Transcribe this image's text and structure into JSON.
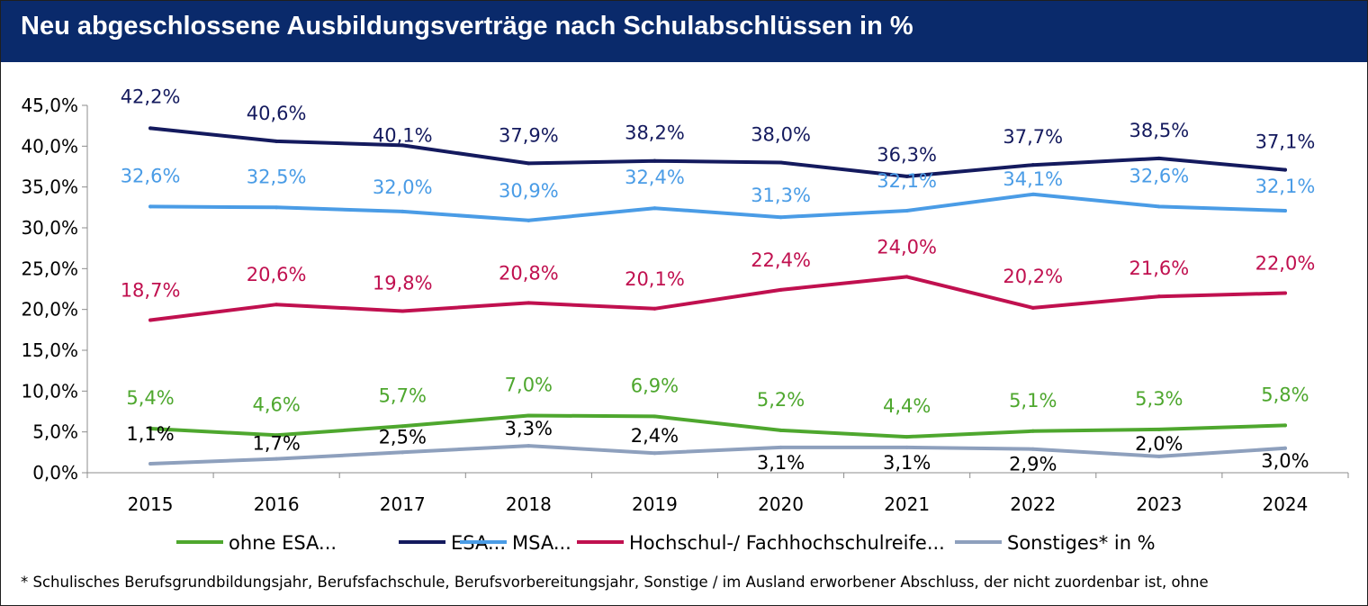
{
  "title": "Neu abgeschlossene Ausbildungsverträge nach Schulabschlüssen in %",
  "footnote": "* Schulisches Berufsgrundbildungsjahr, Berufsfachschule, Berufsvorbereitungsjahr, Sonstige /  im Ausland erworbener Abschluss, der nicht zuordenbar ist, ohne",
  "chart_data": {
    "type": "line",
    "title": "Neu abgeschlossene Ausbildungsverträge nach Schulabschlüssen in %",
    "xlabel": "",
    "ylabel": "",
    "ylim": [
      0,
      45
    ],
    "yticks": [
      "0,0%",
      "5,0%",
      "10,0%",
      "15,0%",
      "20,0%",
      "25,0%",
      "30,0%",
      "35,0%",
      "40,0%",
      "45,0%"
    ],
    "categories": [
      "2015",
      "2016",
      "2017",
      "2018",
      "2019",
      "2020",
      "2021",
      "2022",
      "2023",
      "2024"
    ],
    "grid": false,
    "legend_position": "bottom",
    "series": [
      {
        "name": "ohne ESA...",
        "color": "#4ea72e",
        "values": [
          5.4,
          4.6,
          5.7,
          7.0,
          6.9,
          5.2,
          4.4,
          5.1,
          5.3,
          5.8
        ],
        "labels": [
          "5,4%",
          "4,6%",
          "5,7%",
          "7,0%",
          "6,9%",
          "5,2%",
          "4,4%",
          "5,1%",
          "5,3%",
          "5,8%"
        ]
      },
      {
        "name": "ESA...",
        "color": "#141a5e",
        "values": [
          42.2,
          40.6,
          40.1,
          37.9,
          38.2,
          38.0,
          36.3,
          37.7,
          38.5,
          37.1
        ],
        "labels": [
          "42,2%",
          "40,6%",
          "40,1%",
          "37,9%",
          "38,2%",
          "38,0%",
          "36,3%",
          "37,7%",
          "38,5%",
          "37,1%"
        ]
      },
      {
        "name": "MSA...",
        "color": "#4a9ce6",
        "values": [
          32.6,
          32.5,
          32.0,
          30.9,
          32.4,
          31.3,
          32.1,
          34.1,
          32.6,
          32.1
        ],
        "labels": [
          "32,6%",
          "32,5%",
          "32,0%",
          "30,9%",
          "32,4%",
          "31,3%",
          "32,1%",
          "34,1%",
          "32,6%",
          "32,1%"
        ]
      },
      {
        "name": "Hochschul-/ Fachhochschulreife...",
        "color": "#c0104f",
        "values": [
          18.7,
          20.6,
          19.8,
          20.8,
          20.1,
          22.4,
          24.0,
          20.2,
          21.6,
          22.0
        ],
        "labels": [
          "18,7%",
          "20,6%",
          "19,8%",
          "20,8%",
          "20,1%",
          "22,4%",
          "24,0%",
          "20,2%",
          "21,6%",
          "22,0%"
        ]
      },
      {
        "name": "Sonstiges* in %",
        "color": "#8ea0bd",
        "values": [
          1.1,
          1.7,
          2.5,
          3.3,
          2.4,
          3.1,
          3.1,
          2.9,
          2.0,
          3.0
        ],
        "labels": [
          "1,1%",
          "1,7%",
          "2,5%",
          "3,3%",
          "2,4%",
          "3,1%",
          "3,1%",
          "2,9%",
          "2,0%",
          "3,0%"
        ]
      }
    ]
  }
}
